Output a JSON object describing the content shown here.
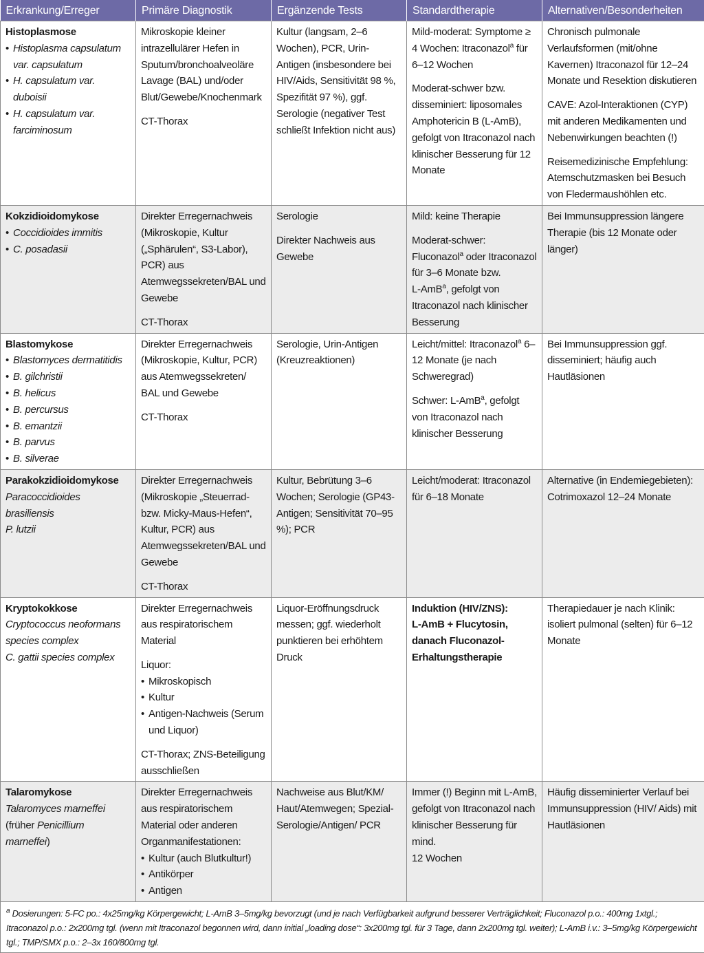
{
  "colors": {
    "header_bg": "#6d6aa6",
    "alt_row_bg": "#ececec"
  },
  "headers": [
    "Erkrankung/Erreger",
    "Primäre Diagnostik",
    "Ergänzende Tests",
    "Standardtherapie",
    "Alternativen/Besonderheiten"
  ],
  "rows": [
    {
      "cells": [
        [
          {
            "type": "line",
            "parts": [
              {
                "text": "Histoplasmose",
                "style": "b"
              }
            ]
          },
          {
            "type": "li",
            "parts": [
              {
                "text": "Histoplasma capsulatum var. capsulatum",
                "style": "i"
              }
            ]
          },
          {
            "type": "li",
            "parts": [
              {
                "text": "H. capsulatum var. duboisii",
                "style": "i"
              }
            ]
          },
          {
            "type": "li",
            "parts": [
              {
                "text": "H. capsulatum var. farciminosum",
                "style": "i"
              }
            ]
          }
        ],
        [
          {
            "type": "p",
            "parts": [
              {
                "text": "Mikroskopie kleiner intrazellulärer Hefen in Sputum/bronchoalveoläre Lavage (BAL) und/oder Blut/Gewebe/Knochenmark"
              }
            ]
          },
          {
            "type": "p",
            "parts": [
              {
                "text": "CT-Thorax"
              }
            ]
          }
        ],
        [
          {
            "type": "p",
            "parts": [
              {
                "text": "Kultur (langsam, 2–6 Wochen), PCR, Urin-Antigen (insbesondere bei HIV/Aids, Sensitivität 98 %, Spezifität 97 %), ggf. Serologie (negativer Test schließt Infektion nicht aus)"
              }
            ]
          }
        ],
        [
          {
            "type": "p",
            "parts": [
              {
                "text": "Mild-moderat: Symptome ≥ 4 Wochen: Itraconazol"
              },
              {
                "text": "a",
                "style": "sup"
              },
              {
                "text": " für 6–12 Wochen"
              }
            ]
          },
          {
            "type": "p",
            "parts": [
              {
                "text": "Moderat-schwer bzw. disseminiert: liposomales Amphotericin B (L-AmB), gefolgt von Itraconazol nach klinischer Besserung für 12 Monate"
              }
            ]
          }
        ],
        [
          {
            "type": "p",
            "parts": [
              {
                "text": "Chronisch pulmonale Verlaufsformen (mit/ohne Kavernen) Itraconazol für 12–24 Monate und Resektion diskutieren"
              }
            ]
          },
          {
            "type": "p",
            "parts": [
              {
                "text": "CAVE: Azol-Interaktionen (CYP) mit anderen Medikamenten und Nebenwirkungen beachten (!)"
              }
            ]
          },
          {
            "type": "p",
            "parts": [
              {
                "text": "Reisemedizinische Empfehlung: Atemschutzmasken bei Besuch von Fledermaushöhlen etc."
              }
            ]
          }
        ]
      ]
    },
    {
      "cells": [
        [
          {
            "type": "line",
            "parts": [
              {
                "text": "Kokzidioidomykose",
                "style": "b"
              }
            ]
          },
          {
            "type": "li",
            "parts": [
              {
                "text": "Coccidioides immitis",
                "style": "i"
              }
            ]
          },
          {
            "type": "li",
            "parts": [
              {
                "text": "C. posadasii",
                "style": "i"
              }
            ]
          }
        ],
        [
          {
            "type": "p",
            "parts": [
              {
                "text": "Direkter Erregernachweis (Mikroskopie, Kultur („Sphärulen“, S3-Labor), PCR) aus Atemwegssekreten/BAL und Gewebe"
              }
            ]
          },
          {
            "type": "p",
            "parts": [
              {
                "text": "CT-Thorax"
              }
            ]
          }
        ],
        [
          {
            "type": "p",
            "parts": [
              {
                "text": "Serologie"
              }
            ]
          },
          {
            "type": "p",
            "parts": [
              {
                "text": "Direkter Nachweis aus Gewebe"
              }
            ]
          }
        ],
        [
          {
            "type": "p",
            "parts": [
              {
                "text": "Mild: keine Therapie"
              }
            ]
          },
          {
            "type": "p",
            "parts": [
              {
                "text": "Moderat-schwer: Fluconazol"
              },
              {
                "text": "a",
                "style": "sup"
              },
              {
                "text": " oder Itraconazol für 3–6 Monate bzw."
              },
              {
                "br": true
              },
              {
                "text": "L-AmB"
              },
              {
                "text": "a",
                "style": "sup"
              },
              {
                "text": ", gefolgt von Itraconazol nach klinischer Besserung"
              }
            ]
          }
        ],
        [
          {
            "type": "p",
            "parts": [
              {
                "text": "Bei Immunsuppression längere Therapie (bis 12 Monate oder länger)"
              }
            ]
          }
        ]
      ]
    },
    {
      "cells": [
        [
          {
            "type": "line",
            "parts": [
              {
                "text": "Blastomykose",
                "style": "b"
              }
            ]
          },
          {
            "type": "li",
            "parts": [
              {
                "text": "Blastomyces dermatitidis",
                "style": "i"
              }
            ]
          },
          {
            "type": "li",
            "parts": [
              {
                "text": "B. gilchristii",
                "style": "i"
              }
            ]
          },
          {
            "type": "li",
            "parts": [
              {
                "text": "B. helicus",
                "style": "i"
              }
            ]
          },
          {
            "type": "li",
            "parts": [
              {
                "text": "B. percursus",
                "style": "i"
              }
            ]
          },
          {
            "type": "li",
            "parts": [
              {
                "text": "B. emantzii",
                "style": "i"
              }
            ]
          },
          {
            "type": "li",
            "parts": [
              {
                "text": "B. parvus",
                "style": "i"
              }
            ]
          },
          {
            "type": "li",
            "parts": [
              {
                "text": "B. silverae",
                "style": "i"
              }
            ]
          }
        ],
        [
          {
            "type": "p",
            "parts": [
              {
                "text": "Direkter Erregernachweis (Mikroskopie, Kultur, PCR) aus Atemwegssekreten/ BAL und Gewebe"
              }
            ]
          },
          {
            "type": "p",
            "parts": [
              {
                "text": "CT-Thorax"
              }
            ]
          }
        ],
        [
          {
            "type": "p",
            "parts": [
              {
                "text": "Serologie, Urin-Antigen (Kreuzreaktionen)"
              }
            ]
          }
        ],
        [
          {
            "type": "p",
            "parts": [
              {
                "text": "Leicht/mittel: Itraconazol"
              },
              {
                "text": "a",
                "style": "sup"
              },
              {
                "text": " 6–12 Monate (je nach Schweregrad)"
              }
            ]
          },
          {
            "type": "p",
            "parts": [
              {
                "text": "Schwer: L-AmB"
              },
              {
                "text": "a",
                "style": "sup"
              },
              {
                "text": ", gefolgt von Itraconazol nach klinischer Besserung"
              }
            ]
          }
        ],
        [
          {
            "type": "p",
            "parts": [
              {
                "text": "Bei Immunsuppression ggf. disseminiert; häufig auch Hautläsionen"
              }
            ]
          }
        ]
      ]
    },
    {
      "cells": [
        [
          {
            "type": "line",
            "parts": [
              {
                "text": "Parakokzidioidomykose",
                "style": "b"
              }
            ]
          },
          {
            "type": "line",
            "parts": [
              {
                "text": "Paracoccidioides brasiliensis",
                "style": "i"
              }
            ]
          },
          {
            "type": "line",
            "parts": [
              {
                "text": "P. lutzii",
                "style": "i"
              }
            ]
          }
        ],
        [
          {
            "type": "p",
            "parts": [
              {
                "text": "Direkter Erregernachweis (Mikroskopie „Steuerrad- bzw. Micky-Maus-Hefen“, Kultur, PCR) aus Atemwegssekreten/BAL und Gewebe"
              }
            ]
          },
          {
            "type": "p",
            "parts": [
              {
                "text": "CT-Thorax"
              }
            ]
          }
        ],
        [
          {
            "type": "p",
            "parts": [
              {
                "text": "Kultur, Bebrütung 3–6 Wochen; Serologie (GP43-Antigen; Sensitivität 70–95 %); PCR"
              }
            ]
          }
        ],
        [
          {
            "type": "p",
            "parts": [
              {
                "text": "Leicht/moderat: Itraconazol für 6–18 Monate"
              }
            ]
          }
        ],
        [
          {
            "type": "p",
            "parts": [
              {
                "text": "Alternative (in Endemiegebieten): Cotrimoxazol 12–24 Monate"
              }
            ]
          }
        ]
      ]
    },
    {
      "cells": [
        [
          {
            "type": "line",
            "parts": [
              {
                "text": "Kryptokokkose",
                "style": "b"
              }
            ]
          },
          {
            "type": "line",
            "parts": [
              {
                "text": "Cryptococcus neoformans species complex",
                "style": "i"
              }
            ]
          },
          {
            "type": "line",
            "parts": [
              {
                "text": "C. gattii species complex",
                "style": "i"
              }
            ]
          }
        ],
        [
          {
            "type": "p",
            "parts": [
              {
                "text": "Direkter Erregernachweis aus respiratorischem Material"
              }
            ]
          },
          {
            "type": "p",
            "parts": [
              {
                "text": "Liquor:"
              }
            ]
          },
          {
            "type": "li",
            "parts": [
              {
                "text": "Mikroskopisch"
              }
            ]
          },
          {
            "type": "li",
            "parts": [
              {
                "text": "Kultur"
              }
            ]
          },
          {
            "type": "li",
            "parts": [
              {
                "text": "Antigen-Nachweis (Serum und Liquor)"
              }
            ]
          },
          {
            "type": "p",
            "parts": [
              {
                "text": "CT-Thorax; ZNS-Beteiligung ausschließen"
              }
            ]
          }
        ],
        [
          {
            "type": "p",
            "parts": [
              {
                "text": "Liquor-Eröffnungsdruck messen; ggf. wiederholt punktieren bei erhöhtem Druck"
              }
            ]
          }
        ],
        [
          {
            "type": "p",
            "parts": [
              {
                "text": "Induktion (HIV/ZNS):",
                "style": "b"
              },
              {
                "br": true
              },
              {
                "text": "L-AmB + Flucytosin, danach Fluconazol-Erhaltungstherapie",
                "style": "b"
              }
            ]
          }
        ],
        [
          {
            "type": "p",
            "parts": [
              {
                "text": "Therapiedauer je nach Klinik: isoliert pulmonal (selten) für 6–12 Monate"
              }
            ]
          }
        ]
      ]
    },
    {
      "cells": [
        [
          {
            "type": "line",
            "parts": [
              {
                "text": "Talaromykose",
                "style": "b"
              }
            ]
          },
          {
            "type": "line",
            "parts": [
              {
                "text": "Talaromyces marneffei",
                "style": "i"
              }
            ]
          },
          {
            "type": "line",
            "parts": [
              {
                "text": "(früher "
              },
              {
                "text": "Penicillium marneffei",
                "style": "i"
              },
              {
                "text": ")"
              }
            ]
          }
        ],
        [
          {
            "type": "p",
            "parts": [
              {
                "text": "Direkter Erregernachweis aus respiratorischem Material oder anderen Organmanifestationen:"
              }
            ]
          },
          {
            "type": "li",
            "parts": [
              {
                "text": "Kultur (auch Blutkultur!)"
              }
            ]
          },
          {
            "type": "li",
            "parts": [
              {
                "text": "Antikörper"
              }
            ]
          },
          {
            "type": "li",
            "parts": [
              {
                "text": "Antigen"
              }
            ]
          }
        ],
        [
          {
            "type": "p",
            "parts": [
              {
                "text": "Nachweise aus Blut/KM/ Haut/Atemwegen; Spezial-Serologie/Antigen/ PCR"
              }
            ]
          }
        ],
        [
          {
            "type": "p",
            "parts": [
              {
                "text": "Immer (!) Beginn mit L-AmB, gefolgt von Itraconazol nach klinischer Besserung für mind."
              },
              {
                "br": true
              },
              {
                "text": "12 Wochen"
              }
            ]
          }
        ],
        [
          {
            "type": "p",
            "parts": [
              {
                "text": "Häufig disseminierter Verlauf bei Immunsuppression (HIV/ Aids) mit Hautläsionen"
              }
            ]
          }
        ]
      ]
    }
  ],
  "footnote": {
    "marker": "a",
    "text": " Dosierungen: 5-FC po.: 4x25mg/kg Körpergewicht; L-AmB 3–5mg/kg bevorzugt (und je nach Verfügbarkeit aufgrund besserer Verträglichkeit; Fluconazol p.o.: 400mg 1xtgl.; Itraconazol p.o.: 2x200mg tgl. (wenn mit Itraconazol begonnen wird, dann initial „loading dose“: 3x200mg tgl. für 3 Tage, dann 2x200mg tgl. weiter); L-AmB i.v.: 3–5mg/kg Körpergewicht tgl.; TMP/SMX p.o.: 2–3x 160/800mg tgl."
  }
}
